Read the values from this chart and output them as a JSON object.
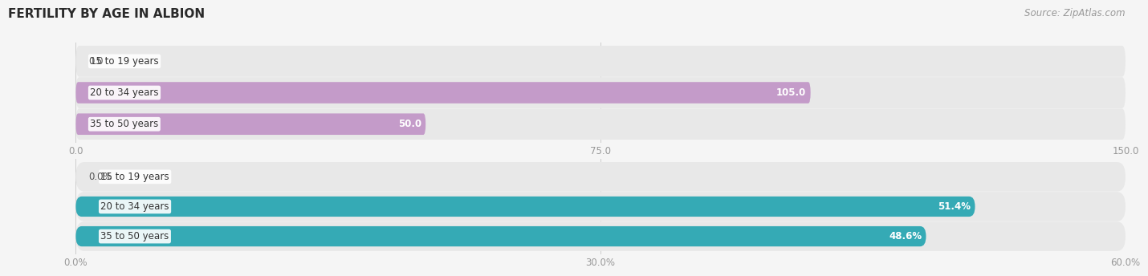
{
  "title": "FERTILITY BY AGE IN ALBION",
  "source": "Source: ZipAtlas.com",
  "top_chart": {
    "categories": [
      "15 to 19 years",
      "20 to 34 years",
      "35 to 50 years"
    ],
    "values": [
      0.0,
      105.0,
      50.0
    ],
    "xlim": [
      0,
      150
    ],
    "xticks": [
      0.0,
      75.0,
      150.0
    ],
    "xtick_labels": [
      "0.0",
      "75.0",
      "150.0"
    ],
    "bar_color": "#c49bc9",
    "bar_bg_color": "#e8e8e8",
    "value_threshold": 20,
    "value_inside_color": "#ffffff",
    "value_outside_color": "#555555"
  },
  "bottom_chart": {
    "categories": [
      "15 to 19 years",
      "20 to 34 years",
      "35 to 50 years"
    ],
    "values": [
      0.0,
      51.4,
      48.6
    ],
    "xlim": [
      0,
      60
    ],
    "xticks": [
      0.0,
      30.0,
      60.0
    ],
    "xtick_labels": [
      "0.0%",
      "30.0%",
      "60.0%"
    ],
    "bar_color": "#35aab5",
    "bar_bg_color": "#e8e8e8",
    "value_threshold": 5,
    "value_inside_color": "#ffffff",
    "value_outside_color": "#555555"
  },
  "label_font_size": 8.5,
  "value_font_size": 8.5,
  "tick_font_size": 8.5,
  "title_font_size": 11,
  "source_font_size": 8.5,
  "bar_height": 0.68,
  "background_color": "#f5f5f5",
  "label_bg_color": "#ffffff",
  "gridline_color": "#cccccc"
}
